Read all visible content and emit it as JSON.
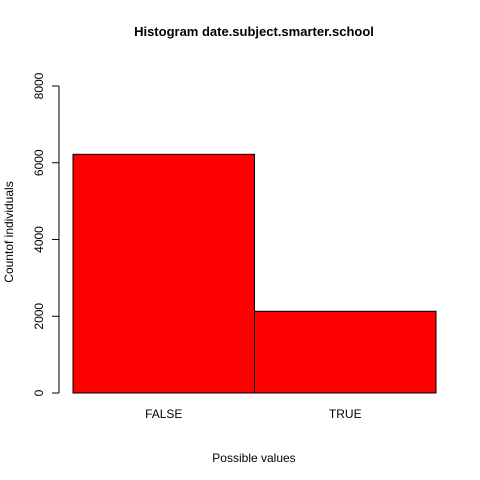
{
  "chart_data": {
    "type": "bar",
    "title": "Histogram date.subject.smarter.school",
    "xlabel": "Possible values",
    "ylabel": "Countof individuals",
    "categories": [
      "FALSE",
      "TRUE"
    ],
    "values": [
      6220,
      2130
    ],
    "ylim": [
      0,
      8000
    ],
    "yticks": [
      "0",
      "2000",
      "4000",
      "6000",
      "8000"
    ],
    "grid": false,
    "bar_color": "#ff0000",
    "bar_border_color": "#000000"
  }
}
